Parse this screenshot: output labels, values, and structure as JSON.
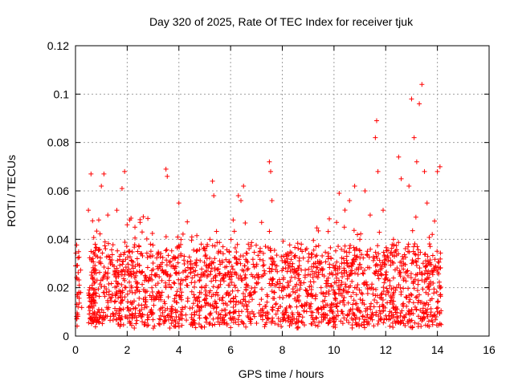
{
  "chart_data": {
    "type": "scatter",
    "title": "Day 320 of 2025, Rate Of TEC Index for receiver tjuk",
    "xlabel": "GPS time / hours",
    "ylabel": "ROTI / TECUs",
    "xlim": [
      0,
      16
    ],
    "ylim": [
      0,
      0.12
    ],
    "xticks": [
      0,
      2,
      4,
      6,
      8,
      10,
      12,
      14,
      16
    ],
    "xtick_labels": [
      "0",
      "2",
      "4",
      "6",
      "8",
      "10",
      "12",
      "14",
      "16"
    ],
    "yticks": [
      0,
      0.02,
      0.04,
      0.06,
      0.08,
      0.1,
      0.12
    ],
    "ytick_labels": [
      "0",
      "0.02",
      "0.04",
      "0.06",
      "0.08",
      "0.1",
      "0.12"
    ],
    "grid": true,
    "marker": "+",
    "color": "#ff0000",
    "series": [
      {
        "name": "ROTI",
        "x": [
          0.0,
          0.1,
          0.2,
          0.5,
          0.6,
          0.55,
          0.7,
          0.9,
          1.0,
          1.1,
          1.2,
          1.25,
          1.4,
          1.6,
          1.8,
          1.9,
          1.95,
          2.0,
          2.1,
          2.2,
          2.3,
          2.4,
          2.5,
          2.7,
          2.9,
          3.1,
          3.3,
          3.5,
          3.55,
          3.7,
          3.9,
          4.0,
          4.1,
          4.3,
          4.5,
          4.6,
          4.8,
          5.0,
          5.2,
          5.3,
          5.35,
          5.5,
          5.7,
          5.9,
          6.1,
          6.3,
          6.4,
          6.5,
          6.6,
          6.8,
          7.0,
          7.2,
          7.5,
          7.55,
          7.6,
          7.7,
          7.9,
          8.1,
          8.3,
          8.5,
          8.7,
          8.9,
          9.1,
          9.3,
          9.5,
          9.7,
          9.9,
          10.1,
          10.2,
          10.4,
          10.6,
          10.8,
          11.0,
          11.2,
          11.4,
          11.6,
          11.65,
          11.7,
          11.9,
          12.1,
          12.3,
          12.5,
          12.6,
          12.9,
          13.0,
          13.1,
          13.2,
          13.3,
          13.4,
          13.5,
          13.6,
          13.8,
          14.0,
          14.1
        ],
        "y": [
          0.029,
          0.012,
          0.018,
          0.052,
          0.067,
          0.02,
          0.015,
          0.048,
          0.062,
          0.067,
          0.018,
          0.05,
          0.016,
          0.052,
          0.061,
          0.068,
          0.02,
          0.046,
          0.048,
          0.018,
          0.045,
          0.022,
          0.047,
          0.016,
          0.038,
          0.021,
          0.015,
          0.069,
          0.066,
          0.02,
          0.017,
          0.055,
          0.015,
          0.021,
          0.041,
          0.016,
          0.018,
          0.02,
          0.04,
          0.064,
          0.058,
          0.02,
          0.016,
          0.018,
          0.048,
          0.058,
          0.056,
          0.062,
          0.019,
          0.017,
          0.022,
          0.047,
          0.072,
          0.068,
          0.056,
          0.018,
          0.016,
          0.02,
          0.017,
          0.018,
          0.021,
          0.019,
          0.017,
          0.037,
          0.02,
          0.018,
          0.021,
          0.047,
          0.059,
          0.045,
          0.056,
          0.062,
          0.04,
          0.06,
          0.05,
          0.082,
          0.089,
          0.068,
          0.052,
          0.018,
          0.04,
          0.074,
          0.065,
          0.062,
          0.098,
          0.082,
          0.072,
          0.096,
          0.104,
          0.068,
          0.055,
          0.042,
          0.068,
          0.07
        ]
      }
    ],
    "noise_band": {
      "x_range": [
        0.0,
        14.15
      ],
      "y_range": [
        0.003,
        0.035
      ],
      "count": 1800
    }
  }
}
